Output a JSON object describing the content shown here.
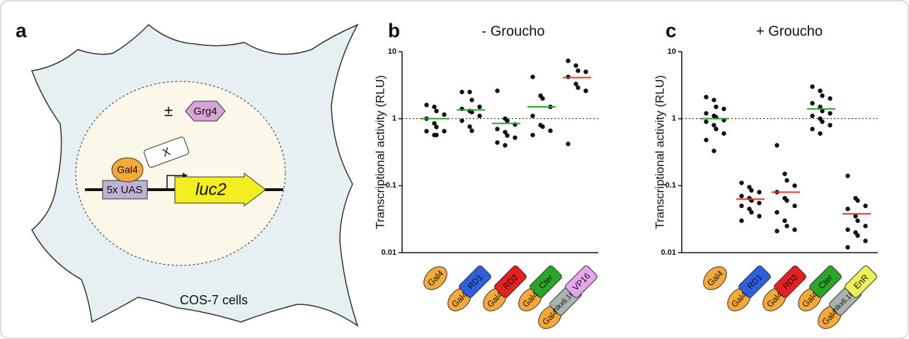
{
  "panel_a": {
    "label": "a",
    "modifier": "±",
    "protein": "Grg4",
    "binder": "Gal4",
    "fusion": "X",
    "element": "5x UAS",
    "reporter": "luc2",
    "cell_line": "COS-7 cells"
  },
  "part_colors": {
    "Gal4": "#f5a93b",
    "RD1": "#2f5fdc",
    "RD2": "#e42020",
    "Cter": "#2aa52a",
    "Nkx6.1HD": "#a9b4af",
    "VP16": "#e6a6ee",
    "EnR": "#eef05a"
  },
  "chart_data": [
    {
      "panel_label": "b",
      "type": "strip",
      "title": "- Groucho",
      "y_label": "Transcriptional activity (RLU)",
      "log_y": true,
      "ylim": [
        0.01,
        10
      ],
      "yticks": [
        0.01,
        0.1,
        1,
        10
      ],
      "reference_line": 1,
      "point_color": "#111111",
      "categories": [
        [
          "Gal4"
        ],
        [
          "Gal4",
          "RD1"
        ],
        [
          "Gal4",
          "RD2"
        ],
        [
          "Gal4",
          "Cter"
        ],
        [
          "Gal4",
          "Nkx6.1HD",
          "VP16"
        ]
      ],
      "values": [
        [
          1.6,
          1.5,
          1.3,
          1.15,
          1.0,
          0.85,
          0.75,
          0.65,
          0.65,
          0.57,
          0.57
        ],
        [
          2.5,
          2.5,
          1.9,
          1.5,
          1.4,
          1.3,
          1.25,
          1.1,
          0.93,
          0.76,
          0.66
        ],
        [
          2.6,
          1.0,
          0.93,
          0.82,
          0.7,
          0.63,
          0.56,
          0.52,
          0.44,
          0.4
        ],
        [
          4.2,
          2.2,
          2.0,
          1.5,
          1.1,
          0.8,
          0.76,
          0.66,
          0.57
        ],
        [
          7.3,
          6.2,
          5.2,
          5.0,
          4.2,
          3.3,
          2.9,
          2.6,
          0.42
        ]
      ],
      "means": [
        1.0,
        1.35,
        0.85,
        1.5,
        4.1
      ],
      "mean_colors": [
        "#2aa52a",
        "#2aa52a",
        "#2aa52a",
        "#2aa52a",
        "#e8342f"
      ]
    },
    {
      "panel_label": "c",
      "type": "strip",
      "title": "+ Groucho",
      "y_label": "Transcriptional activity (RLU)",
      "log_y": true,
      "ylim": [
        0.01,
        10
      ],
      "yticks": [
        0.01,
        0.1,
        1,
        10
      ],
      "reference_line": 1,
      "point_color": "#111111",
      "categories": [
        [
          "Gal4"
        ],
        [
          "Gal4",
          "RD1"
        ],
        [
          "Gal4",
          "RD2"
        ],
        [
          "Gal4",
          "Cter"
        ],
        [
          "Gal4",
          "Nkx6.1HD",
          "EnR"
        ]
      ],
      "values": [
        [
          2.1,
          1.9,
          1.5,
          1.4,
          1.2,
          1.1,
          1.05,
          0.95,
          0.9,
          0.8,
          0.7,
          0.6,
          0.48,
          0.33
        ],
        [
          0.11,
          0.095,
          0.085,
          0.08,
          0.07,
          0.065,
          0.06,
          0.055,
          0.05,
          0.045,
          0.04,
          0.035,
          0.03
        ],
        [
          0.4,
          0.15,
          0.12,
          0.1,
          0.08,
          0.065,
          0.06,
          0.05,
          0.04,
          0.03,
          0.025,
          0.022,
          0.021
        ],
        [
          3.0,
          2.6,
          2.2,
          2.0,
          1.7,
          1.5,
          1.3,
          1.2,
          1.1,
          1.0,
          0.9,
          0.8,
          0.7,
          0.6
        ],
        [
          0.14,
          0.065,
          0.06,
          0.05,
          0.045,
          0.035,
          0.03,
          0.025,
          0.022,
          0.02,
          0.018,
          0.015,
          0.012
        ]
      ],
      "means": [
        1.0,
        0.063,
        0.08,
        1.4,
        0.038
      ],
      "mean_colors": [
        "#2aa52a",
        "#e8342f",
        "#e8342f",
        "#2aa52a",
        "#e8342f"
      ]
    }
  ]
}
